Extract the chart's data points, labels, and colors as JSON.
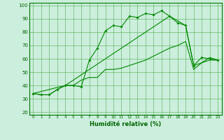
{
  "xlabel": "Humidité relative (%)",
  "background_color": "#cceedd",
  "grid_color": "#66bb66",
  "line_color": "#008800",
  "xlim": [
    -0.5,
    23.5
  ],
  "ylim": [
    18,
    102
  ],
  "yticks": [
    20,
    30,
    40,
    50,
    60,
    70,
    80,
    90,
    100
  ],
  "xticks": [
    0,
    1,
    2,
    3,
    4,
    5,
    6,
    7,
    8,
    9,
    10,
    11,
    12,
    13,
    14,
    15,
    16,
    17,
    18,
    19,
    20,
    21,
    22,
    23
  ],
  "line1_x": [
    0,
    1,
    2,
    3,
    4,
    5,
    6,
    7,
    8,
    9,
    10,
    11,
    12,
    13,
    14,
    15,
    16,
    17,
    18,
    19,
    20,
    21,
    22,
    23
  ],
  "line1_y": [
    34,
    33,
    33,
    37,
    40,
    40,
    39,
    59,
    68,
    81,
    85,
    84,
    92,
    91,
    94,
    93,
    96,
    92,
    87,
    85,
    55,
    61,
    60,
    59
  ],
  "line2_x": [
    0,
    1,
    2,
    3,
    4,
    5,
    6,
    7,
    8,
    9,
    10,
    11,
    12,
    13,
    14,
    15,
    16,
    17,
    18,
    19,
    20,
    21,
    22,
    23
  ],
  "line2_y": [
    34,
    33,
    33,
    37,
    40,
    40,
    44,
    46,
    46,
    52,
    52,
    53,
    55,
    57,
    59,
    62,
    65,
    68,
    70,
    73,
    52,
    57,
    59,
    59
  ],
  "line3_x": [
    0,
    4,
    17,
    19,
    20,
    21,
    22,
    23
  ],
  "line3_y": [
    34,
    40,
    92,
    85,
    55,
    57,
    61,
    59
  ]
}
